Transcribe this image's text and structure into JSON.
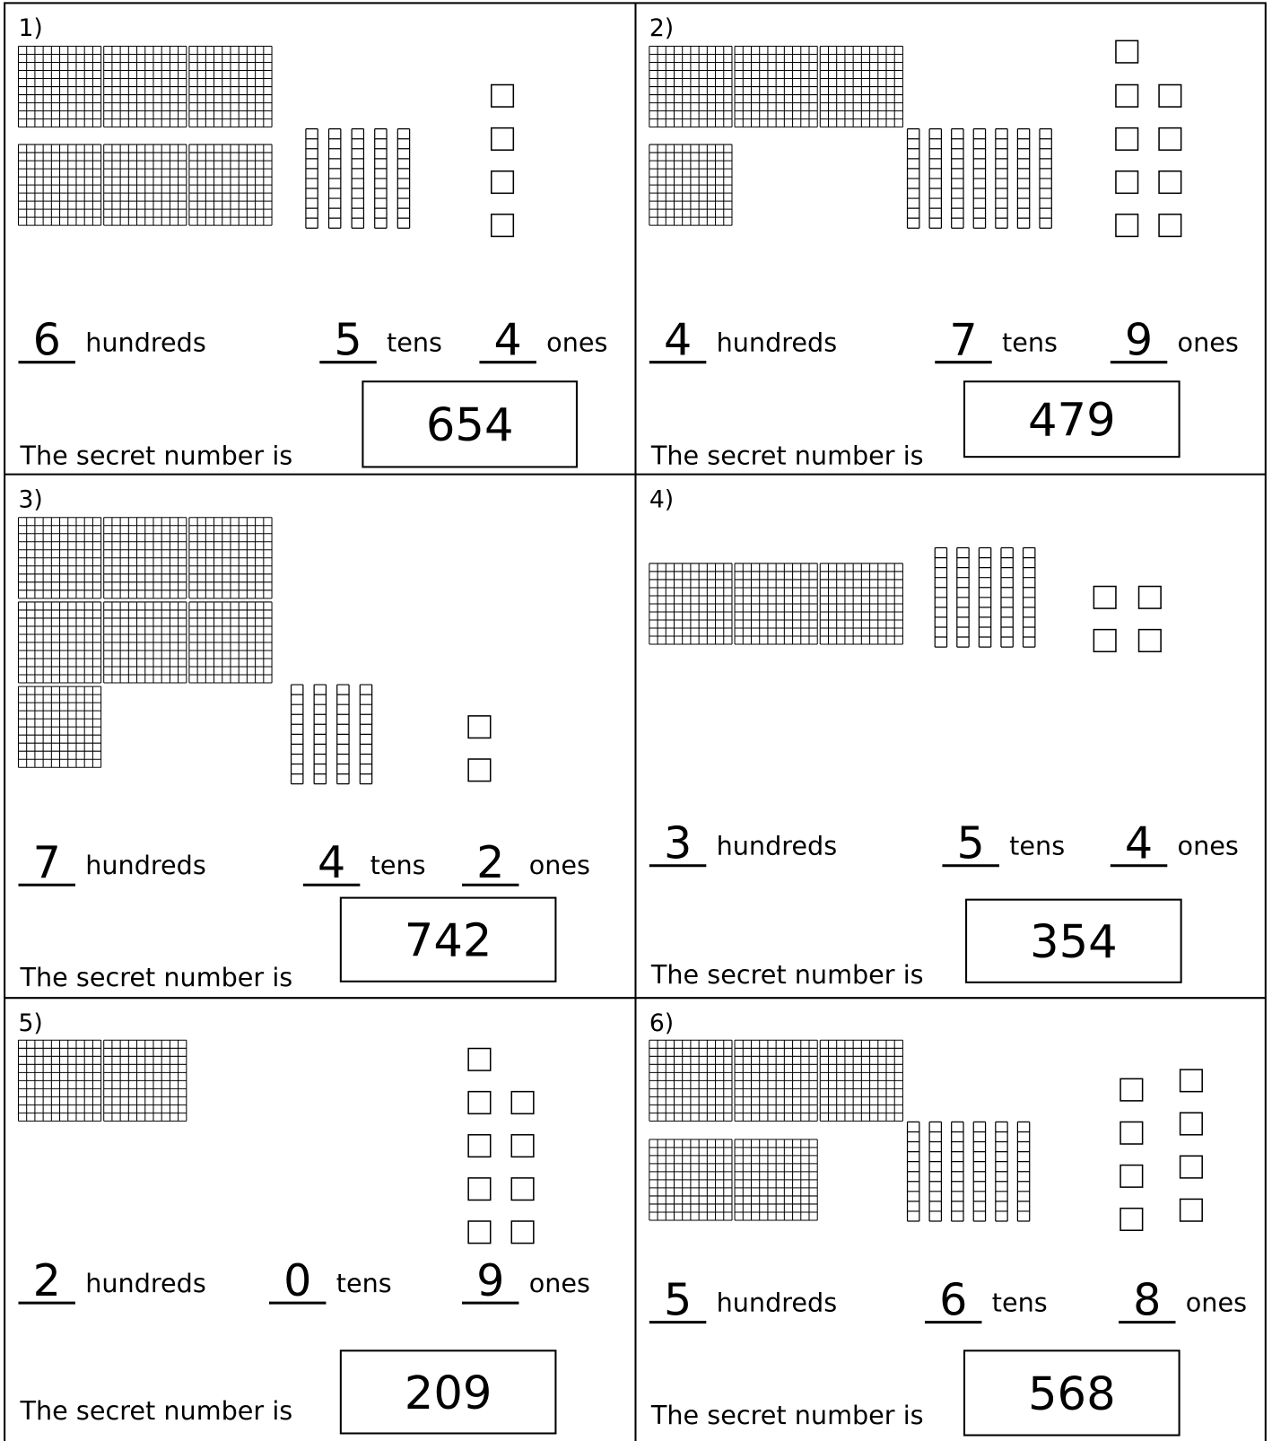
{
  "problems": [
    {
      "label": "1)",
      "hundreds": 6,
      "hundreds_word": "hundreds",
      "tens": 5,
      "tens_word": "tens",
      "ones": 4,
      "ones_word": "ones",
      "secret_text": "The secret number is",
      "answer": 654
    },
    {
      "label": "2)",
      "hundreds": 4,
      "hundreds_word": "hundreds",
      "tens": 7,
      "tens_word": "tens",
      "ones": 9,
      "ones_word": "ones",
      "secret_text": "The secret number is",
      "answer": 479
    },
    {
      "label": "3)",
      "hundreds": 7,
      "hundreds_word": "hundreds",
      "tens": 4,
      "tens_word": "tens",
      "ones": 2,
      "ones_word": "ones",
      "secret_text": "The secret number is",
      "answer": 742
    },
    {
      "label": "4)",
      "hundreds": 3,
      "hundreds_word": "hundreds",
      "tens": 5,
      "tens_word": "tens",
      "ones": 4,
      "ones_word": "ones",
      "secret_text": "The secret number is",
      "answer": 354
    },
    {
      "label": "5)",
      "hundreds": 2,
      "hundreds_word": "hundreds",
      "tens": 0,
      "tens_word": "tens",
      "ones": 9,
      "ones_word": "ones",
      "secret_text": "The secret number is",
      "answer": 209
    },
    {
      "label": "6)",
      "hundreds": 5,
      "hundreds_word": "hundreds",
      "tens": 6,
      "tens_word": "tens",
      "ones": 8,
      "ones_word": "ones",
      "secret_text": "The secret number is",
      "answer": 568
    }
  ]
}
